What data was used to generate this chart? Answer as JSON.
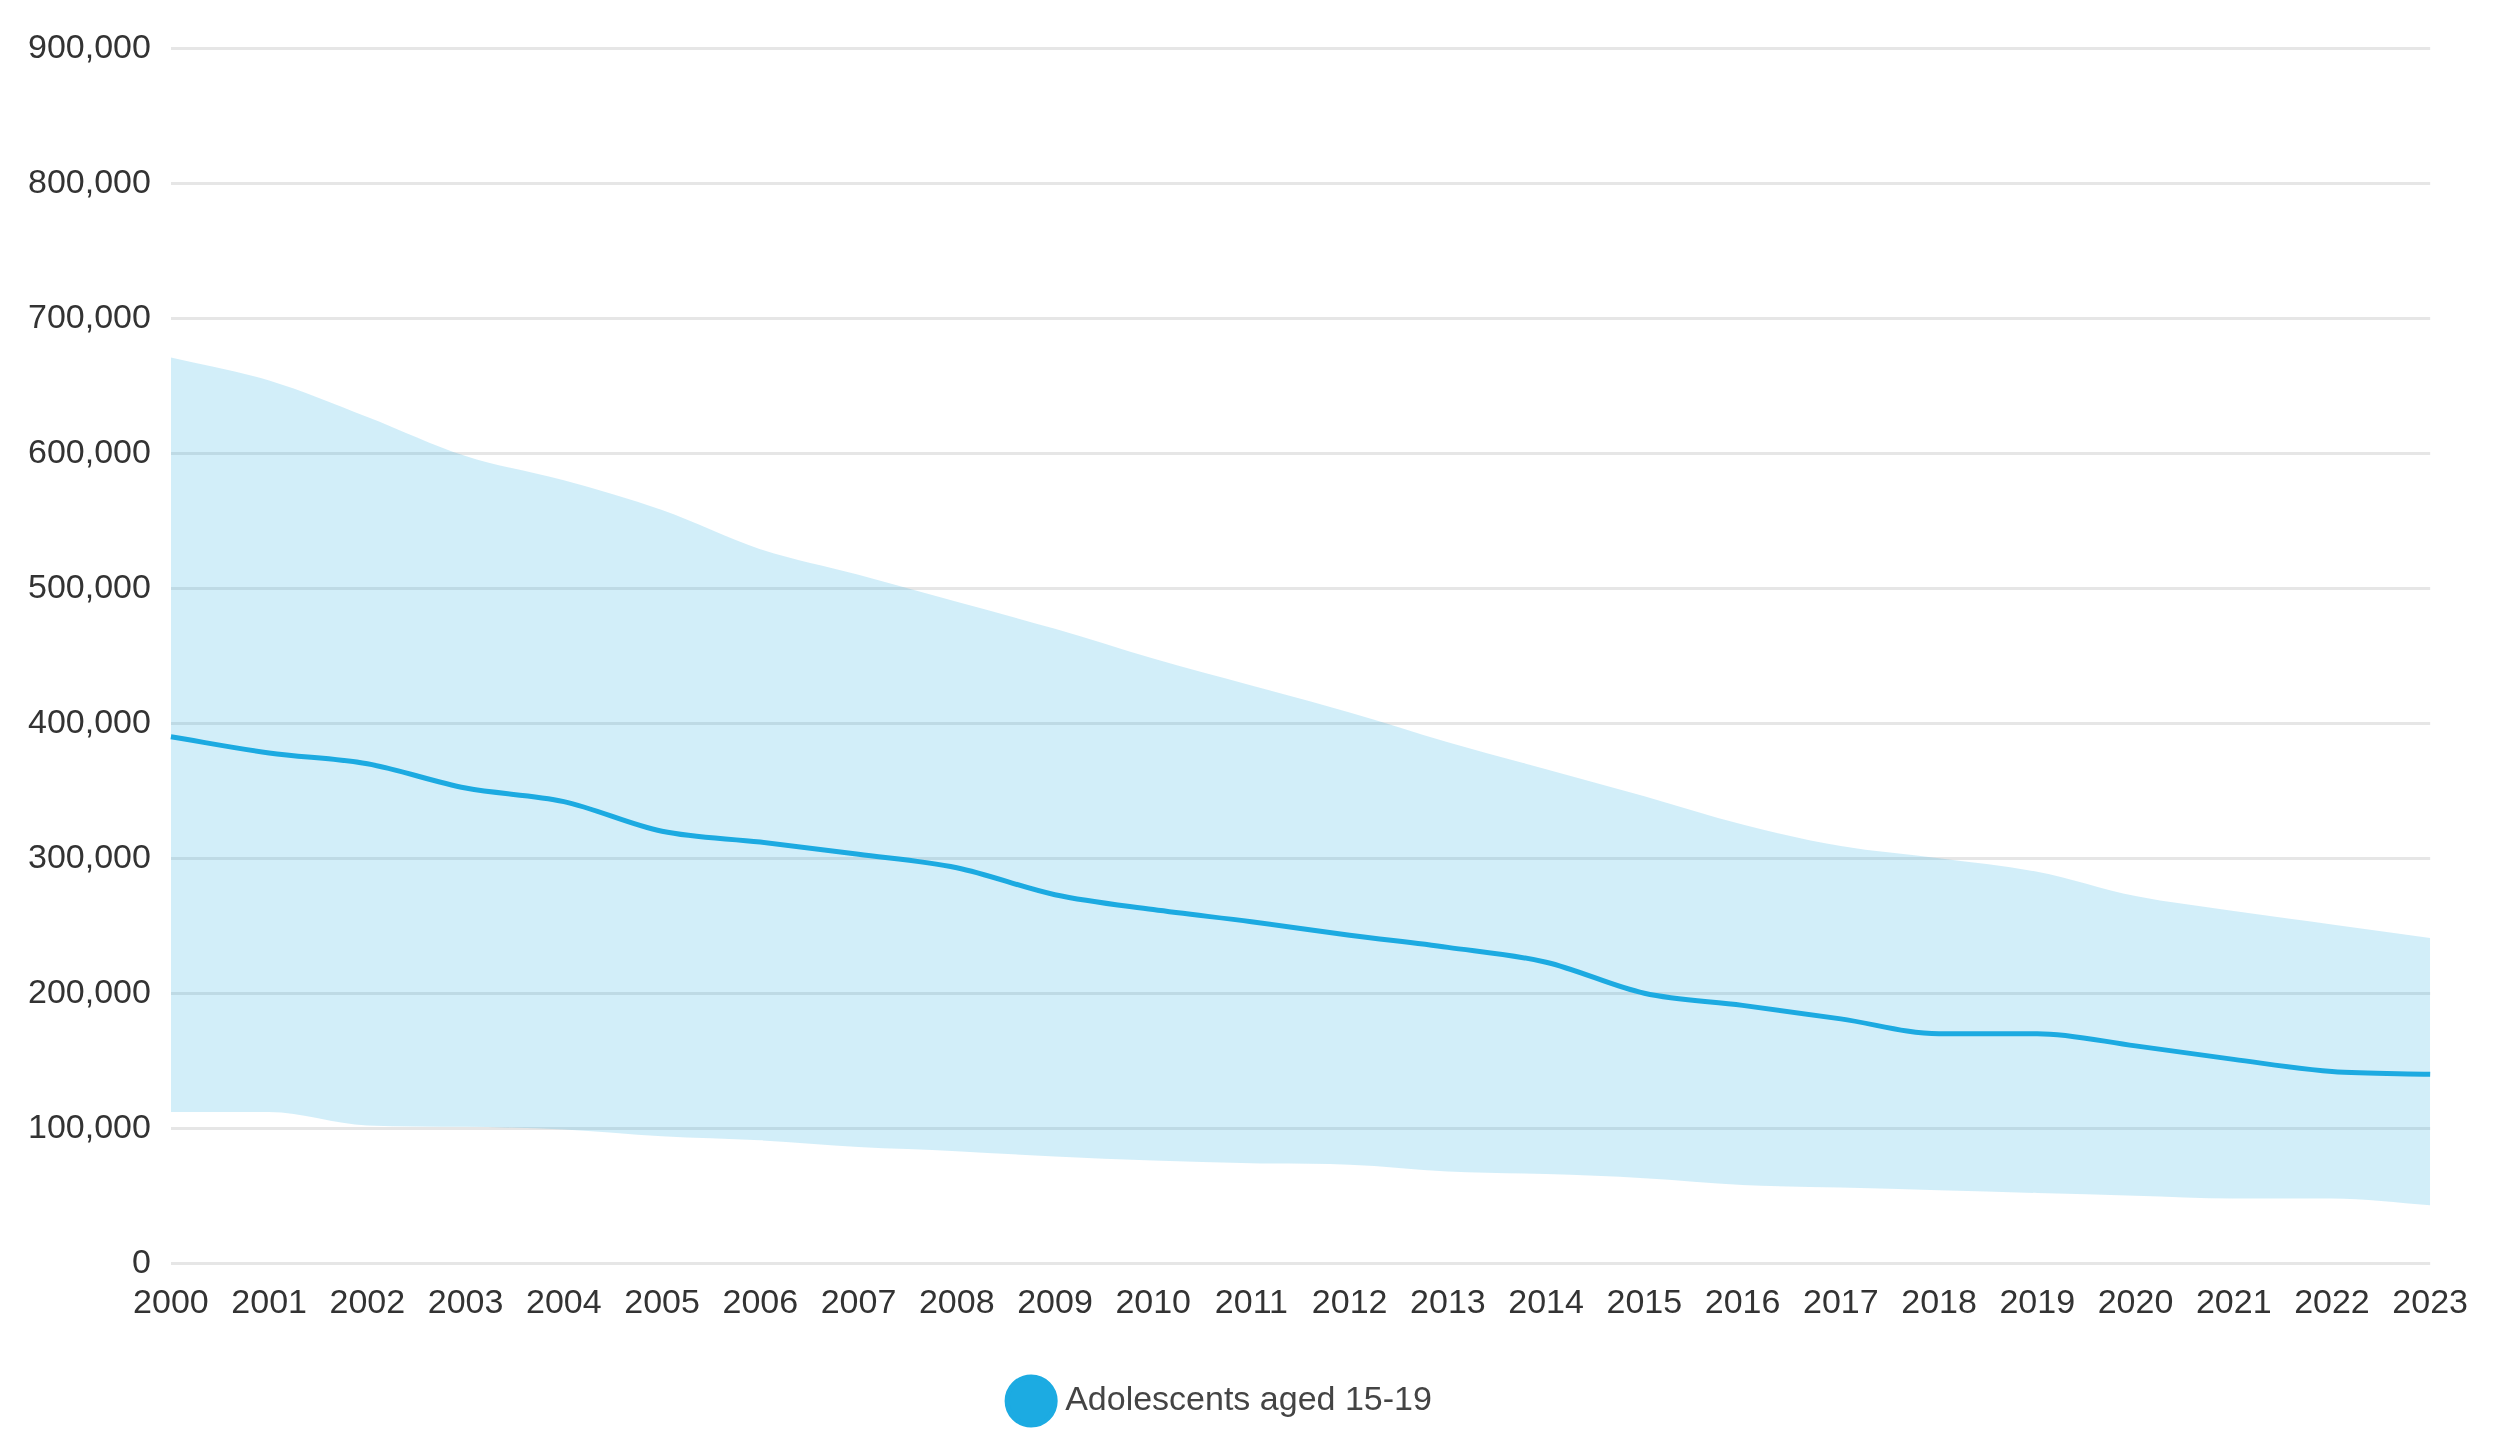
{
  "chart_data": {
    "type": "line",
    "categories": [
      "2000",
      "2001",
      "2002",
      "2003",
      "2004",
      "2005",
      "2006",
      "2007",
      "2008",
      "2009",
      "2010",
      "2011",
      "2012",
      "2013",
      "2014",
      "2015",
      "2016",
      "2017",
      "2018",
      "2019",
      "2020",
      "2021",
      "2022",
      "2023"
    ],
    "series": [
      {
        "name": "Adolescents aged 15-19",
        "color": "#1cabe2",
        "values": [
          390000,
          378000,
          370000,
          352000,
          342000,
          320000,
          312000,
          303000,
          293000,
          273000,
          262000,
          253000,
          243000,
          234000,
          223000,
          200000,
          191000,
          181000,
          170000,
          170000,
          161000,
          151000,
          142000,
          140000
        ],
        "lower": [
          112000,
          112000,
          102000,
          101000,
          99000,
          94000,
          91000,
          86000,
          83000,
          79000,
          76000,
          74000,
          73000,
          68000,
          66000,
          63000,
          58000,
          56000,
          54000,
          52000,
          50000,
          48000,
          48000,
          43000
        ],
        "upper": [
          671000,
          654000,
          627000,
          598000,
          580000,
          558000,
          529000,
          510000,
          490000,
          470000,
          448000,
          428000,
          408000,
          386000,
          366000,
          346000,
          325000,
          309000,
          300000,
          290000,
          272000,
          261000,
          251000,
          241000
        ]
      }
    ],
    "ylim": [
      0,
      900000
    ],
    "yticks": [
      0,
      {
        "value": 100000,
        "label": "100,000"
      },
      {
        "value": 200000,
        "label": "200,000"
      },
      {
        "value": 300000,
        "label": "300,000"
      },
      {
        "value": 400000,
        "label": "400,000"
      },
      {
        "value": 500000,
        "label": "500,000"
      },
      {
        "value": 600000,
        "label": "600,000"
      },
      {
        "value": 700000,
        "label": "700,000"
      },
      {
        "value": 800000,
        "label": "800,000"
      },
      {
        "value": 900000,
        "label": "900,000"
      }
    ],
    "grid": "y",
    "legend": "bottom",
    "marker": "none",
    "line_style": "solid"
  }
}
